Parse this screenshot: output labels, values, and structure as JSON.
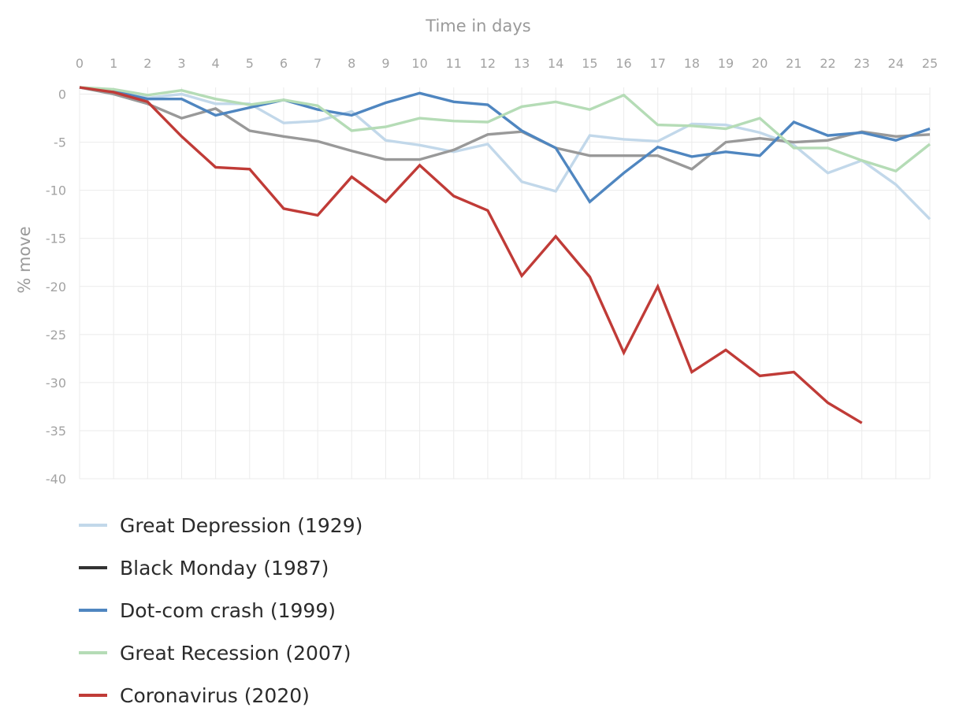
{
  "chart_data": {
    "type": "line",
    "title": "",
    "xlabel": "Time in days",
    "ylabel": "% move",
    "xlim": [
      0,
      25
    ],
    "ylim": [
      -40,
      0
    ],
    "x_ticks": [
      0,
      1,
      2,
      3,
      4,
      5,
      6,
      7,
      8,
      9,
      10,
      11,
      12,
      13,
      14,
      15,
      16,
      17,
      18,
      19,
      20,
      21,
      22,
      23,
      24,
      25
    ],
    "y_ticks": [
      0,
      -5,
      -10,
      -15,
      -20,
      -25,
      -30,
      -35,
      -40
    ],
    "grid": true,
    "legend_position": "bottom-left",
    "series": [
      {
        "name": "Great Depression (1929)",
        "color": "#c2d8ea",
        "x": [
          0,
          1,
          2,
          3,
          4,
          5,
          6,
          7,
          8,
          9,
          10,
          11,
          12,
          13,
          14,
          15,
          16,
          17,
          18,
          19,
          20,
          21,
          22,
          23,
          24,
          25
        ],
        "values": [
          0.7,
          0.3,
          -0.4,
          0.0,
          -1.0,
          -1.0,
          -3.0,
          -2.8,
          -1.8,
          -4.8,
          -5.3,
          -6.0,
          -5.2,
          -9.1,
          -10.1,
          -4.3,
          -4.7,
          -4.9,
          -3.1,
          -3.2,
          -4.0,
          -5.3,
          -8.2,
          -6.9,
          -9.4,
          -13.0
        ]
      },
      {
        "name": "Black Monday (1987)",
        "color": "#999999",
        "legend_color": "#333333",
        "x": [
          0,
          1,
          2,
          3,
          4,
          5,
          6,
          7,
          8,
          9,
          10,
          11,
          12,
          13,
          14,
          15,
          16,
          17,
          18,
          19,
          20,
          21,
          22,
          23,
          24,
          25
        ],
        "values": [
          0.7,
          0.0,
          -1.0,
          -2.5,
          -1.5,
          -3.8,
          -4.4,
          -4.9,
          -5.9,
          -6.8,
          -6.8,
          -5.8,
          -4.2,
          -3.9,
          -5.6,
          -6.4,
          -6.4,
          -6.4,
          -7.8,
          -5.0,
          -4.6,
          -5.0,
          -4.8,
          -3.9,
          -4.4,
          -4.2
        ]
      },
      {
        "name": "Dot-com crash (1999)",
        "color": "#4f86c0",
        "x": [
          0,
          1,
          2,
          3,
          4,
          5,
          6,
          7,
          8,
          9,
          10,
          11,
          12,
          13,
          14,
          15,
          16,
          17,
          18,
          19,
          20,
          21,
          22,
          23,
          24,
          25
        ],
        "values": [
          0.7,
          0.3,
          -0.5,
          -0.5,
          -2.2,
          -1.4,
          -0.6,
          -1.6,
          -2.2,
          -0.9,
          0.1,
          -0.8,
          -1.1,
          -3.8,
          -5.6,
          -11.2,
          -8.2,
          -5.5,
          -6.5,
          -6.0,
          -6.4,
          -2.9,
          -4.3,
          -4.0,
          -4.8,
          -3.6
        ]
      },
      {
        "name": "Great Recession (2007)",
        "color": "#b5dcb6",
        "x": [
          0,
          1,
          2,
          3,
          4,
          5,
          6,
          7,
          8,
          9,
          10,
          11,
          12,
          13,
          14,
          15,
          16,
          17,
          18,
          19,
          20,
          21,
          22,
          23,
          24,
          25
        ],
        "values": [
          0.7,
          0.5,
          -0.1,
          0.4,
          -0.5,
          -1.1,
          -0.6,
          -1.2,
          -3.8,
          -3.4,
          -2.5,
          -2.8,
          -2.9,
          -1.3,
          -0.8,
          -1.6,
          -0.1,
          -3.2,
          -3.3,
          -3.6,
          -2.5,
          -5.6,
          -5.6,
          -6.9,
          -8.0,
          -5.2
        ]
      },
      {
        "name": "Coronavirus (2020)",
        "color": "#c03b37",
        "x": [
          0,
          1,
          2,
          3,
          4,
          5,
          6,
          7,
          8,
          9,
          10,
          11,
          12,
          13,
          14,
          15,
          16,
          17,
          18,
          19,
          20,
          21,
          22,
          23
        ],
        "values": [
          0.7,
          0.2,
          -0.8,
          -4.4,
          -7.6,
          -7.8,
          -11.9,
          -12.6,
          -8.6,
          -11.2,
          -7.4,
          -10.6,
          -12.1,
          -18.9,
          -14.8,
          -19.0,
          -26.9,
          -20.0,
          -28.9,
          -26.6,
          -29.3,
          -28.9,
          -32.1,
          -34.2
        ]
      }
    ]
  }
}
